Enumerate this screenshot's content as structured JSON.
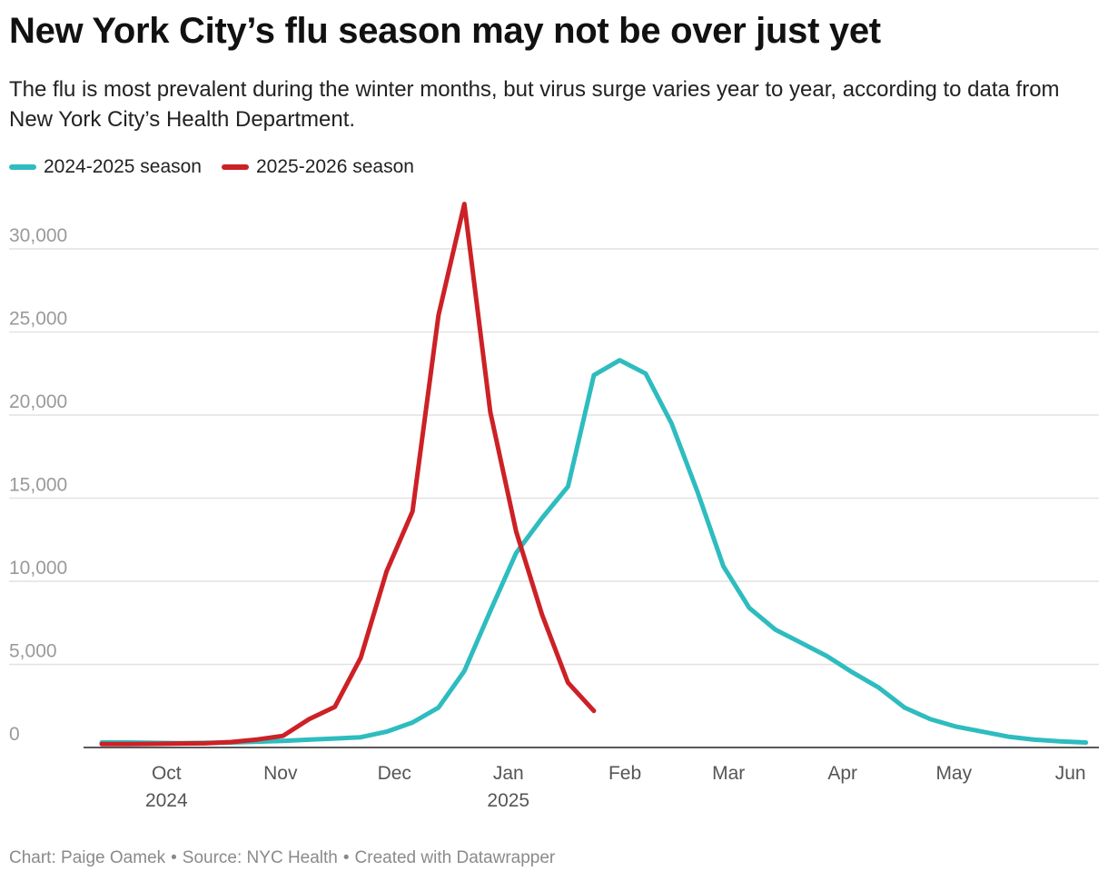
{
  "title": "New York City’s flu season may not be over just yet",
  "subtitle": "The flu is most prevalent during the winter months, but virus surge varies year to year, according to data from New York City’s Health Department.",
  "footer": {
    "chart_label": "Chart: Paige Oamek",
    "source_label": "Source: NYC Health",
    "created_label": "Created with Datawrapper"
  },
  "chart_data": {
    "type": "line",
    "title": "New York City’s flu season may not be over just yet",
    "xlabel": "",
    "ylabel": "",
    "ylim": [
      0,
      30000
    ],
    "yticks": [
      0,
      5000,
      10000,
      15000,
      20000,
      25000,
      30000
    ],
    "ytick_labels": [
      "0",
      "5,000",
      "10,000",
      "15,000",
      "20,000",
      "25,000",
      "30,000"
    ],
    "x_unit": "week",
    "x_range": [
      0,
      38.5
    ],
    "xticks": [
      {
        "x": 2.5,
        "label": "Oct",
        "sub": "2024"
      },
      {
        "x": 6.9,
        "label": "Nov",
        "sub": ""
      },
      {
        "x": 11.3,
        "label": "Dec",
        "sub": ""
      },
      {
        "x": 15.7,
        "label": "Jan",
        "sub": "2025"
      },
      {
        "x": 20.2,
        "label": "Feb",
        "sub": ""
      },
      {
        "x": 24.2,
        "label": "Mar",
        "sub": ""
      },
      {
        "x": 28.6,
        "label": "Apr",
        "sub": ""
      },
      {
        "x": 32.9,
        "label": "May",
        "sub": ""
      },
      {
        "x": 37.4,
        "label": "Jun",
        "sub": ""
      }
    ],
    "series": [
      {
        "name": "2024-2025 season",
        "color": "#2ebcbf",
        "x": [
          0,
          1,
          2,
          3,
          4,
          5,
          6,
          7,
          8,
          9,
          10,
          11,
          12,
          13,
          14,
          15,
          16,
          17,
          18,
          19,
          20,
          21,
          22,
          23,
          24,
          25,
          26,
          27,
          28,
          29,
          30,
          31,
          32,
          33,
          34,
          35,
          36,
          37,
          38
        ],
        "values": [
          300,
          300,
          280,
          260,
          280,
          300,
          350,
          400,
          470,
          540,
          620,
          950,
          1500,
          2400,
          4600,
          8200,
          11700,
          13800,
          15700,
          22400,
          23300,
          22500,
          19500,
          15400,
          10900,
          8400,
          7100,
          6300,
          5500,
          4500,
          3600,
          2400,
          1700,
          1250,
          950,
          650,
          470,
          370,
          300
        ]
      },
      {
        "name": "2025-2026 season",
        "color": "#cc2126",
        "x": [
          0,
          1,
          2,
          3,
          4,
          5,
          6,
          7,
          8,
          9,
          10,
          11,
          12,
          13,
          14,
          15,
          16,
          17,
          18,
          19,
          20
        ],
        "values": [
          200,
          210,
          220,
          240,
          250,
          330,
          480,
          700,
          1700,
          2450,
          5400,
          10600,
          14200,
          26000,
          32700,
          20200,
          13000,
          8000,
          3900,
          2200,
          null
        ]
      }
    ]
  }
}
